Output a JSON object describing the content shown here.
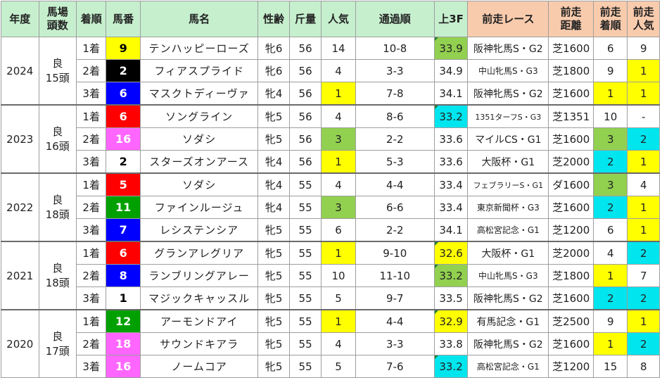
{
  "headers": {
    "year": "年度",
    "condition": "馬場\n頭数",
    "rank": "着順",
    "number": "馬番",
    "horse": "馬名",
    "sexage": "性齢",
    "weight": "斤量",
    "pop": "人気",
    "passing": "通過順",
    "last3f": "上3F",
    "prev_race": "前走レース",
    "prev_dist": "前走\n距離",
    "prev_rank": "前走\n着順",
    "prev_pop": "前走\n人気"
  },
  "colors": {
    "header_green": "#c6efce",
    "header_orange": "#f8cbad",
    "highlight_yellow": "#ffff00",
    "highlight_green": "#92d050",
    "highlight_cyan": "#00e5ee",
    "gate_1": "#ffffff",
    "gate_2": "#000000",
    "gate_3": "#ff0000",
    "gate_4": "#0000ff",
    "gate_5": "#ffff00",
    "gate_6": "#00a000",
    "gate_7": "#ff8c00",
    "gate_8": "#ff66ff"
  },
  "groups": [
    {
      "year": "2024",
      "cond": "良",
      "field": "15頭",
      "rows": [
        {
          "rank": "1着",
          "num": "9",
          "gate": "gate_5",
          "horse": "テンハッピーローズ",
          "sexage": "牝6",
          "weight": "56",
          "pop": "14",
          "pop_hl": "",
          "pass": "10-8",
          "f3": "33.9",
          "f3_hl": "green",
          "race": "阪神牝馬S・G2",
          "race_size": "",
          "dist": "芝1600",
          "prank": "6",
          "prank_hl": "",
          "ppop": "9",
          "ppop_hl": ""
        },
        {
          "rank": "2着",
          "num": "2",
          "gate": "gate_2",
          "horse": "フィアスプライド",
          "sexage": "牝6",
          "weight": "56",
          "pop": "4",
          "pop_hl": "",
          "pass": "3-3",
          "f3": "34.9",
          "f3_hl": "",
          "race": "中山牝馬S・G3",
          "race_size": "small",
          "dist": "芝1800",
          "prank": "9",
          "prank_hl": "",
          "ppop": "1",
          "ppop_hl": "yellow"
        },
        {
          "rank": "3着",
          "num": "6",
          "gate": "gate_4",
          "horse": "マスクトディーヴァ",
          "sexage": "牝4",
          "weight": "56",
          "pop": "1",
          "pop_hl": "yellow",
          "pass": "7-8",
          "f3": "34.1",
          "f3_hl": "",
          "race": "阪神牝馬S・G2",
          "race_size": "",
          "dist": "芝1600",
          "prank": "1",
          "prank_hl": "yellow",
          "ppop": "1",
          "ppop_hl": "yellow"
        }
      ]
    },
    {
      "year": "2023",
      "cond": "良",
      "field": "16頭",
      "rows": [
        {
          "rank": "1着",
          "num": "6",
          "gate": "gate_3",
          "horse": "ソングライン",
          "sexage": "牝5",
          "weight": "56",
          "pop": "4",
          "pop_hl": "",
          "pass": "8-6",
          "f3": "33.2",
          "f3_hl": "cyan",
          "race": "1351ターフS・G3",
          "race_size": "tiny",
          "dist": "芝1351",
          "prank": "10",
          "prank_hl": "",
          "ppop": "-",
          "ppop_hl": ""
        },
        {
          "rank": "2着",
          "num": "16",
          "gate": "gate_8",
          "horse": "ソダシ",
          "sexage": "牝5",
          "weight": "56",
          "pop": "3",
          "pop_hl": "green",
          "pass": "2-2",
          "f3": "33.6",
          "f3_hl": "",
          "race": "マイルCS・G1",
          "race_size": "",
          "dist": "芝1600",
          "prank": "3",
          "prank_hl": "green",
          "ppop": "2",
          "ppop_hl": "cyan"
        },
        {
          "rank": "3着",
          "num": "2",
          "gate": "gate_1",
          "horse": "スターズオンアース",
          "sexage": "牝4",
          "weight": "56",
          "pop": "1",
          "pop_hl": "yellow",
          "pass": "5-3",
          "f3": "33.6",
          "f3_hl": "",
          "race": "大阪杯・G1",
          "race_size": "",
          "dist": "芝2000",
          "prank": "2",
          "prank_hl": "cyan",
          "ppop": "1",
          "ppop_hl": "yellow"
        }
      ]
    },
    {
      "year": "2022",
      "cond": "良",
      "field": "18頭",
      "rows": [
        {
          "rank": "1着",
          "num": "5",
          "gate": "gate_3",
          "horse": "ソダシ",
          "sexage": "牝4",
          "weight": "55",
          "pop": "4",
          "pop_hl": "",
          "pass": "4-4",
          "f3": "33.4",
          "f3_hl": "",
          "race": "フェブラリーS・G1",
          "race_size": "tiny",
          "dist": "ダ1600",
          "prank": "3",
          "prank_hl": "green",
          "ppop": "4",
          "ppop_hl": ""
        },
        {
          "rank": "2着",
          "num": "11",
          "gate": "gate_6",
          "horse": "ファインルージュ",
          "sexage": "牝4",
          "weight": "55",
          "pop": "3",
          "pop_hl": "green",
          "pass": "6-6",
          "f3": "33.4",
          "f3_hl": "",
          "race": "東京新聞杯・G3",
          "race_size": "small",
          "dist": "芝1600",
          "prank": "2",
          "prank_hl": "cyan",
          "ppop": "1",
          "ppop_hl": "yellow"
        },
        {
          "rank": "3着",
          "num": "7",
          "gate": "gate_4",
          "horse": "レシステンシア",
          "sexage": "牝5",
          "weight": "55",
          "pop": "6",
          "pop_hl": "",
          "pass": "2-2",
          "f3": "34.1",
          "f3_hl": "",
          "race": "高松宮記念・G1",
          "race_size": "small",
          "dist": "芝1200",
          "prank": "6",
          "prank_hl": "",
          "ppop": "1",
          "ppop_hl": "yellow"
        }
      ]
    },
    {
      "year": "2021",
      "cond": "良",
      "field": "18頭",
      "rows": [
        {
          "rank": "1着",
          "num": "6",
          "gate": "gate_3",
          "horse": "グランアレグリア",
          "sexage": "牝5",
          "weight": "55",
          "pop": "1",
          "pop_hl": "yellow",
          "pass": "9-10",
          "f3": "32.6",
          "f3_hl": "yellow",
          "race": "大阪杯・G1",
          "race_size": "",
          "dist": "芝2000",
          "prank": "4",
          "prank_hl": "",
          "ppop": "2",
          "ppop_hl": "cyan"
        },
        {
          "rank": "2着",
          "num": "8",
          "gate": "gate_4",
          "horse": "ランブリングアレー",
          "sexage": "牝5",
          "weight": "55",
          "pop": "10",
          "pop_hl": "",
          "pass": "11-10",
          "f3": "33.2",
          "f3_hl": "green",
          "race": "中山牝馬S・G3",
          "race_size": "small",
          "dist": "芝1800",
          "prank": "1",
          "prank_hl": "yellow",
          "ppop": "7",
          "ppop_hl": ""
        },
        {
          "rank": "3着",
          "num": "1",
          "gate": "gate_1",
          "horse": "マジックキャッスル",
          "sexage": "牝5",
          "weight": "55",
          "pop": "5",
          "pop_hl": "",
          "pass": "9-7",
          "f3": "33.5",
          "f3_hl": "",
          "race": "阪神牝馬S・G2",
          "race_size": "",
          "dist": "芝1600",
          "prank": "2",
          "prank_hl": "cyan",
          "ppop": "2",
          "ppop_hl": "cyan"
        }
      ]
    },
    {
      "year": "2020",
      "cond": "良",
      "field": "17頭",
      "rows": [
        {
          "rank": "1着",
          "num": "12",
          "gate": "gate_6",
          "horse": "アーモンドアイ",
          "sexage": "牝5",
          "weight": "55",
          "pop": "1",
          "pop_hl": "yellow",
          "pass": "4-4",
          "f3": "32.9",
          "f3_hl": "yellow",
          "race": "有馬記念・G1",
          "race_size": "",
          "dist": "芝2500",
          "prank": "9",
          "prank_hl": "",
          "ppop": "1",
          "ppop_hl": "yellow"
        },
        {
          "rank": "2着",
          "num": "18",
          "gate": "gate_8",
          "horse": "サウンドキアラ",
          "sexage": "牝5",
          "weight": "55",
          "pop": "4",
          "pop_hl": "",
          "pass": "3-3",
          "f3": "33.8",
          "f3_hl": "",
          "race": "阪神牝馬S・G2",
          "race_size": "",
          "dist": "芝1600",
          "prank": "1",
          "prank_hl": "yellow",
          "ppop": "2",
          "ppop_hl": "cyan"
        },
        {
          "rank": "3着",
          "num": "16",
          "gate": "gate_8",
          "horse": "ノームコア",
          "sexage": "牝5",
          "weight": "55",
          "pop": "5",
          "pop_hl": "",
          "pass": "7-6",
          "f3": "33.2",
          "f3_hl": "cyan",
          "race": "高松宮記念・G1",
          "race_size": "small",
          "dist": "芝1200",
          "prank": "15",
          "prank_hl": "",
          "ppop": "8",
          "ppop_hl": ""
        }
      ]
    }
  ]
}
